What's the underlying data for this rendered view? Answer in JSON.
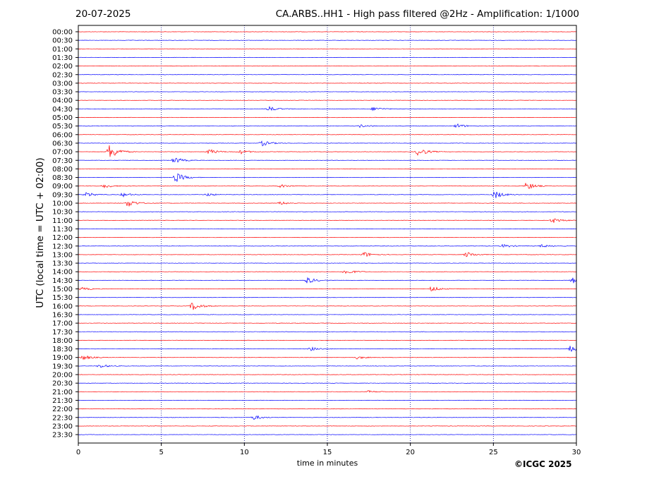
{
  "header": {
    "date": "20-07-2025",
    "station_title": "CA.ARBS..HH1 - High pass filtered @2Hz - Amplification: 1/1000"
  },
  "footer": {
    "copyright": "©ICGC 2025"
  },
  "colors": {
    "red_trace": "#ff0000",
    "blue_trace": "#0000ff",
    "grid": "#00008b",
    "axes": "#000000"
  },
  "chart_data": {
    "type": "line",
    "title": "CA.ARBS..HH1 - High pass filtered @2Hz - Amplification: 1/1000",
    "xlabel": "time in minutes",
    "ylabel": "UTC (local time = UTC + 02:00)",
    "xlim": [
      0,
      30
    ],
    "x_ticks": [
      0,
      5,
      10,
      15,
      20,
      25,
      30
    ],
    "grid": "vertical dotted lines at 5-minute intervals",
    "rows": [
      "00:00",
      "00:30",
      "01:00",
      "01:30",
      "02:00",
      "02:30",
      "03:00",
      "03:30",
      "04:00",
      "04:30",
      "05:00",
      "05:30",
      "06:00",
      "06:30",
      "07:00",
      "07:30",
      "08:00",
      "08:30",
      "09:00",
      "09:30",
      "10:00",
      "10:30",
      "11:00",
      "11:30",
      "12:00",
      "12:30",
      "13:00",
      "13:30",
      "14:00",
      "14:30",
      "15:00",
      "15:30",
      "16:00",
      "16:30",
      "17:00",
      "17:30",
      "18:00",
      "18:30",
      "19:00",
      "19:30",
      "20:00",
      "20:30",
      "21:00",
      "21:30",
      "22:00",
      "22:30",
      "23:00",
      "23:30"
    ],
    "row_colors": "alternating red (full hour) and blue (half hour)",
    "events": [
      {
        "row": "04:30",
        "minute": 11.5,
        "amplitude": 0.3
      },
      {
        "row": "04:30",
        "minute": 17.8,
        "amplitude": 0.25
      },
      {
        "row": "05:30",
        "minute": 17.0,
        "amplitude": 0.2
      },
      {
        "row": "05:30",
        "minute": 22.8,
        "amplitude": 0.3
      },
      {
        "row": "06:30",
        "minute": 11.1,
        "amplitude": 0.35
      },
      {
        "row": "07:00",
        "minute": 1.9,
        "amplitude": 1.0
      },
      {
        "row": "07:00",
        "minute": 7.9,
        "amplitude": 0.35
      },
      {
        "row": "07:00",
        "minute": 9.8,
        "amplitude": 0.25
      },
      {
        "row": "07:00",
        "minute": 20.5,
        "amplitude": 0.55
      },
      {
        "row": "07:30",
        "minute": 5.8,
        "amplitude": 0.4
      },
      {
        "row": "08:30",
        "minute": 5.9,
        "amplitude": 0.6
      },
      {
        "row": "09:00",
        "minute": 1.6,
        "amplitude": 0.25
      },
      {
        "row": "09:00",
        "minute": 12.2,
        "amplitude": 0.2
      },
      {
        "row": "09:00",
        "minute": 27.0,
        "amplitude": 0.5
      },
      {
        "row": "09:30",
        "minute": 0.5,
        "amplitude": 0.3
      },
      {
        "row": "09:30",
        "minute": 2.7,
        "amplitude": 0.25
      },
      {
        "row": "09:30",
        "minute": 7.8,
        "amplitude": 0.2
      },
      {
        "row": "09:30",
        "minute": 25.1,
        "amplitude": 0.5
      },
      {
        "row": "10:00",
        "minute": 3.0,
        "amplitude": 0.5
      },
      {
        "row": "10:00",
        "minute": 12.2,
        "amplitude": 0.2
      },
      {
        "row": "11:00",
        "minute": 28.6,
        "amplitude": 0.35
      },
      {
        "row": "12:30",
        "minute": 25.6,
        "amplitude": 0.25
      },
      {
        "row": "12:30",
        "minute": 27.9,
        "amplitude": 0.2
      },
      {
        "row": "13:00",
        "minute": 17.2,
        "amplitude": 0.35
      },
      {
        "row": "13:00",
        "minute": 23.4,
        "amplitude": 0.35
      },
      {
        "row": "14:00",
        "minute": 16.1,
        "amplitude": 0.35
      },
      {
        "row": "14:30",
        "minute": 13.8,
        "amplitude": 0.4
      },
      {
        "row": "14:30",
        "minute": 29.8,
        "amplitude": 0.4
      },
      {
        "row": "15:00",
        "minute": 21.3,
        "amplitude": 0.35
      },
      {
        "row": "15:00",
        "minute": 0.2,
        "amplitude": 0.2
      },
      {
        "row": "16:00",
        "minute": 6.9,
        "amplitude": 0.55
      },
      {
        "row": "18:30",
        "minute": 14.0,
        "amplitude": 0.25
      },
      {
        "row": "18:30",
        "minute": 29.6,
        "amplitude": 0.4
      },
      {
        "row": "19:00",
        "minute": 0.3,
        "amplitude": 0.3
      },
      {
        "row": "19:00",
        "minute": 16.8,
        "amplitude": 0.2
      },
      {
        "row": "19:30",
        "minute": 1.3,
        "amplitude": 0.25
      },
      {
        "row": "21:00",
        "minute": 17.5,
        "amplitude": 0.15
      },
      {
        "row": "22:30",
        "minute": 10.6,
        "amplitude": 0.3
      }
    ]
  }
}
